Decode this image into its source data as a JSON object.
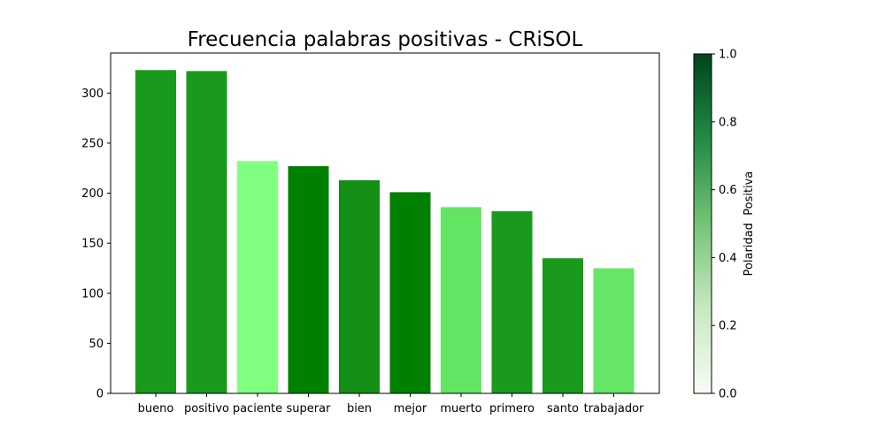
{
  "chart_data": {
    "type": "bar",
    "title": "Frecuencia palabras positivas - CRiSOL",
    "xlabel": "",
    "ylabel": "",
    "ylim": [
      0,
      340
    ],
    "yticks": [
      0,
      50,
      100,
      150,
      200,
      250,
      300
    ],
    "grid": false,
    "categories": [
      "bueno",
      "positivo",
      "paciente",
      "superar",
      "bien",
      "mejor",
      "muerto",
      "primero",
      "santo",
      "trabajador"
    ],
    "values": [
      323,
      322,
      232,
      227,
      213,
      201,
      186,
      182,
      135,
      125
    ],
    "bar_colors": [
      "#1a9a1d",
      "#1a9a1d",
      "#80ff80",
      "#008000",
      "#138f15",
      "#008000",
      "#62e562",
      "#1a9a1d",
      "#1a9a1d",
      "#66e566"
    ],
    "colorbar": {
      "label": "Polaridad  Positiva",
      "range": [
        0.0,
        1.0
      ],
      "ticks": [
        "0.0",
        "0.2",
        "0.4",
        "0.6",
        "0.8",
        "1.0"
      ],
      "colors": [
        "#f7fcf5",
        "#c7e9c0",
        "#74c476",
        "#238b45",
        "#00441b"
      ]
    }
  }
}
